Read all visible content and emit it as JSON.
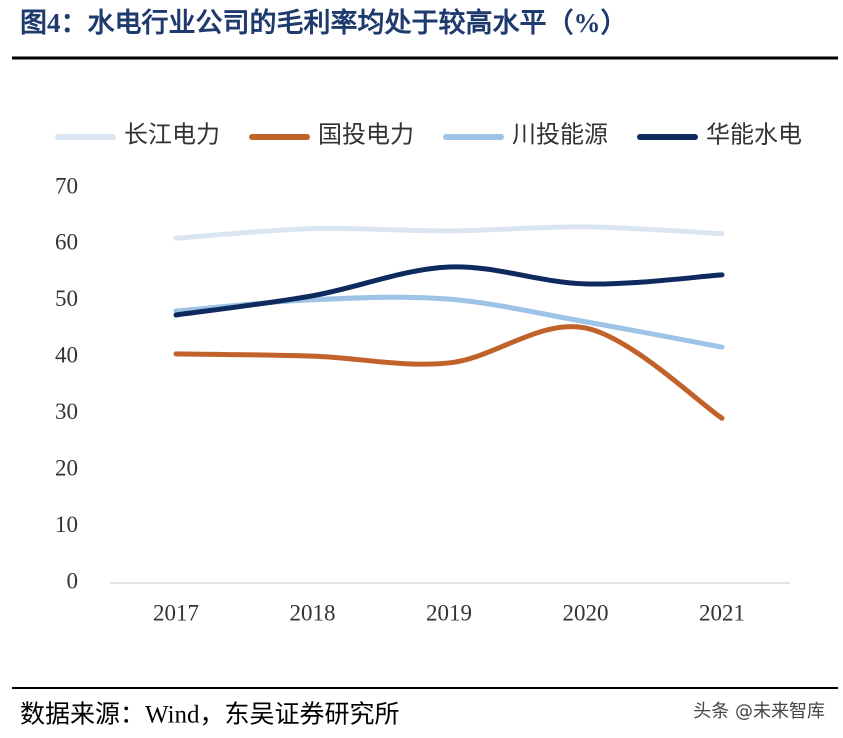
{
  "chart_data": {
    "type": "line",
    "title": "图4：水电行业公司的毛利率均处于较高水平（%）",
    "categories": [
      "2017",
      "2018",
      "2019",
      "2020",
      "2021"
    ],
    "series": [
      {
        "name": "长江电力",
        "color": "#dce6f2",
        "values": [
          61.1,
          62.8,
          62.4,
          63.1,
          61.9
        ]
      },
      {
        "name": "国投电力",
        "color": "#c0622a",
        "values": [
          40.6,
          40.2,
          39.0,
          45.2,
          29.2
        ]
      },
      {
        "name": "川投能源",
        "color": "#9dc3e6",
        "values": [
          48.2,
          50.2,
          50.3,
          46.3,
          41.8
        ]
      },
      {
        "name": "华能水电",
        "color": "#0e2a5e",
        "values": [
          47.5,
          50.9,
          56.0,
          53.0,
          54.6
        ]
      }
    ],
    "ylim": [
      0,
      70
    ],
    "yticks": [
      0,
      10,
      20,
      30,
      40,
      50,
      60,
      70
    ],
    "legend": "top",
    "smooth": true,
    "source": "数据来源：Wind，东吴证券研究所",
    "watermark": "头条 @未来智库"
  }
}
